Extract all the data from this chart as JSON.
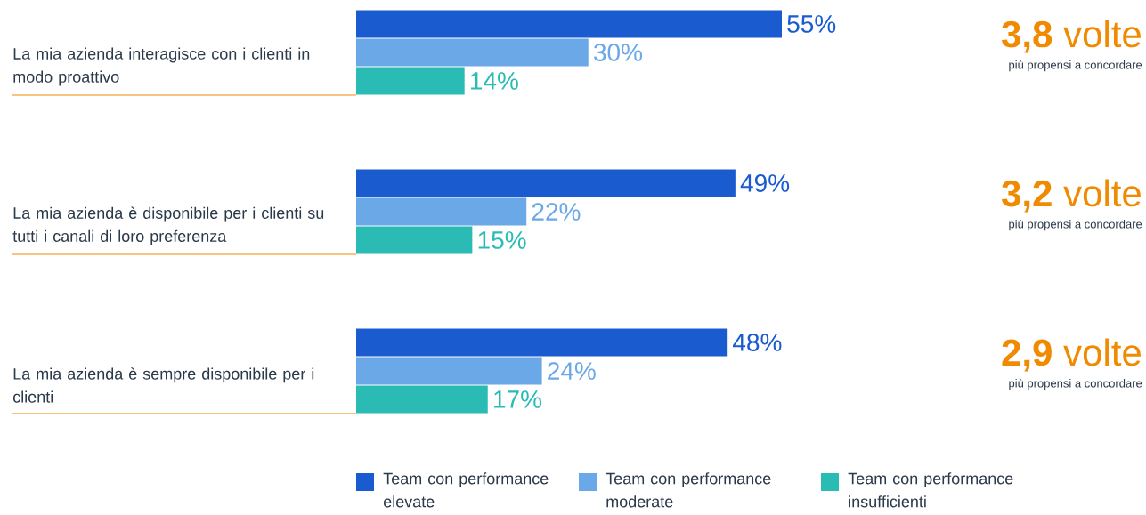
{
  "chart_data": {
    "type": "bar",
    "orientation": "horizontal",
    "categories": [
      "La mia azienda interagisce con i clienti in modo proattivo",
      "La mia azienda è disponibile per i clienti su tutti i canali di loro preferenza",
      "La mia azienda è sempre disponibile per i clienti"
    ],
    "series": [
      {
        "name": "Team con performance elevate",
        "color": "#1a5cd0",
        "values": [
          55,
          49,
          48
        ],
        "value_labels": [
          "55%",
          "49%",
          "48%"
        ]
      },
      {
        "name": "Team con performance moderate",
        "color": "#6aa8e8",
        "values": [
          30,
          22,
          24
        ],
        "value_labels": [
          "30%",
          "22%",
          "24%"
        ]
      },
      {
        "name": "Team con performance insufficienti",
        "color": "#2abcb4",
        "values": [
          14,
          15,
          17
        ],
        "value_labels": [
          "14%",
          "15%",
          "17%"
        ]
      }
    ],
    "legend": "bottom",
    "annotations": [
      "**3,8** volte",
      "più propensi a concordare",
      "**3,2** volte",
      "più propensi a concordare",
      "**2,9** volte",
      "più propensi a concordare"
    ]
  }
}
